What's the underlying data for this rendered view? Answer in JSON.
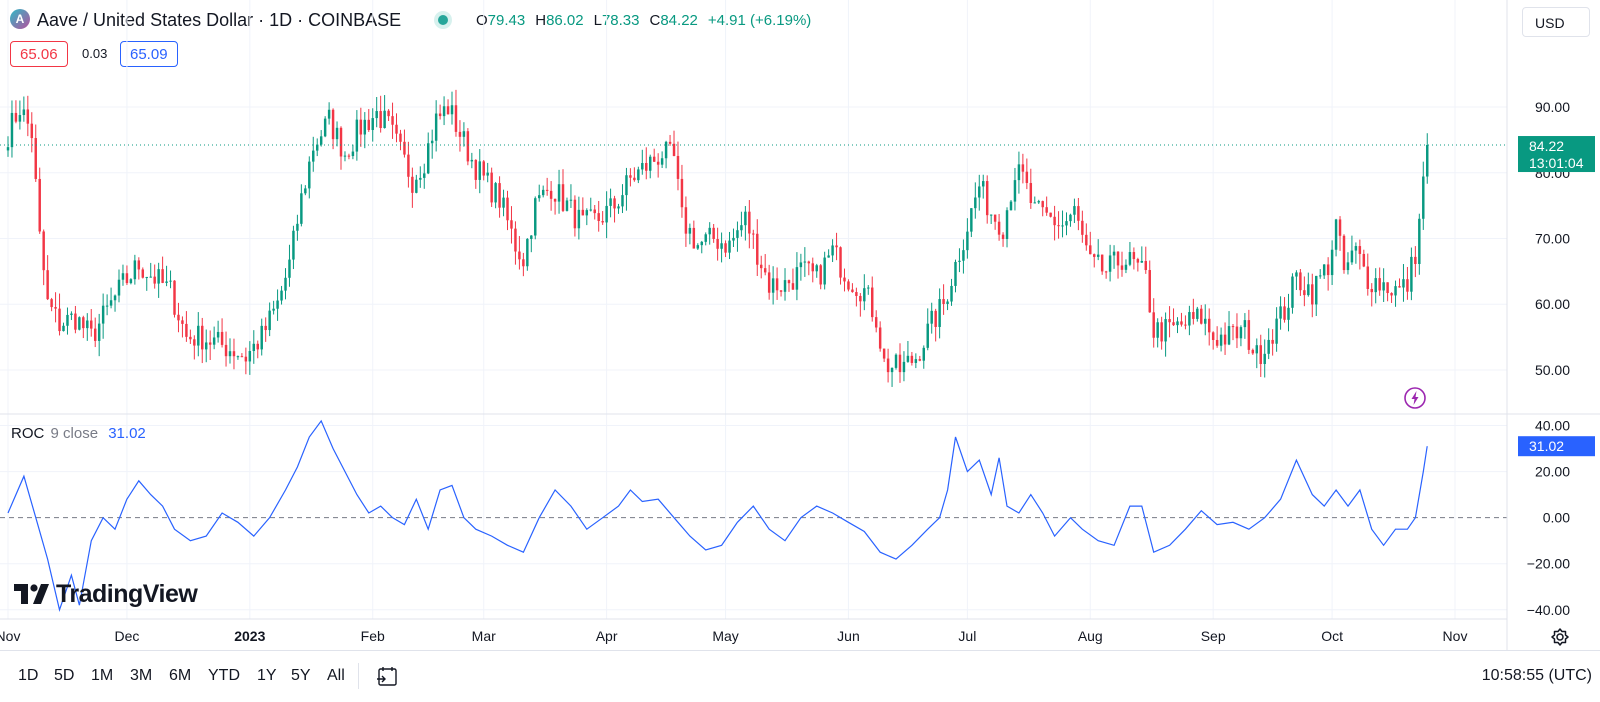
{
  "header": {
    "symbol_title": "Aave / United States Dollar · 1D · COINBASE",
    "logo_letter": "A",
    "ohlc": {
      "o_label": "O",
      "o_value": "79.43",
      "h_label": "H",
      "h_value": "86.02",
      "l_label": "L",
      "l_value": "78.33",
      "c_label": "C",
      "c_value": "84.22",
      "change": "+4.91 (+6.19%)"
    },
    "currency": "USD",
    "bid": "65.06",
    "spread": "0.03",
    "ask": "65.09"
  },
  "indicator": {
    "name": "ROC",
    "params": "9 close",
    "value": "31.02"
  },
  "watermark": "TradingView",
  "bottom_bar": {
    "ranges": [
      "1D",
      "5D",
      "1M",
      "3M",
      "6M",
      "YTD",
      "1Y",
      "5Y",
      "All"
    ],
    "clock": "10:58:55 (UTC)"
  },
  "colors": {
    "up": "#089981",
    "down": "#f23645",
    "roc_line": "#2962ff",
    "price_label_bg": "#089981",
    "roc_label_bg": "#2962ff"
  },
  "chart_data": [
    {
      "type": "candlestick",
      "title": "Aave / United States Dollar · 1D · COINBASE",
      "x_tick_labels": [
        "Nov",
        "Dec",
        "2023",
        "Feb",
        "Mar",
        "Apr",
        "May",
        "Jun",
        "Jul",
        "Aug",
        "Sep",
        "Oct",
        "Nov"
      ],
      "y_tick_labels": [
        "50.00",
        "60.00",
        "70.00",
        "80.00",
        "90.00"
      ],
      "ylim": [
        43.3,
        100.2
      ],
      "last_price": "84.22",
      "countdown": "13:01:04",
      "grid": true,
      "anchor_closes": [
        {
          "date": "2022-11-01",
          "close": 86
        },
        {
          "date": "2022-11-04",
          "close": 90
        },
        {
          "date": "2022-11-07",
          "close": 86
        },
        {
          "date": "2022-11-09",
          "close": 70
        },
        {
          "date": "2022-11-11",
          "close": 60
        },
        {
          "date": "2022-11-14",
          "close": 57
        },
        {
          "date": "2022-11-18",
          "close": 58
        },
        {
          "date": "2022-11-22",
          "close": 55
        },
        {
          "date": "2022-11-26",
          "close": 59
        },
        {
          "date": "2022-11-30",
          "close": 63
        },
        {
          "date": "2022-12-04",
          "close": 66
        },
        {
          "date": "2022-12-08",
          "close": 64
        },
        {
          "date": "2022-12-12",
          "close": 62
        },
        {
          "date": "2022-12-16",
          "close": 55
        },
        {
          "date": "2022-12-20",
          "close": 55
        },
        {
          "date": "2022-12-24",
          "close": 54
        },
        {
          "date": "2022-12-28",
          "close": 53
        },
        {
          "date": "2022-12-31",
          "close": 52
        },
        {
          "date": "2023-01-04",
          "close": 55
        },
        {
          "date": "2023-01-08",
          "close": 60
        },
        {
          "date": "2023-01-11",
          "close": 66
        },
        {
          "date": "2023-01-14",
          "close": 76
        },
        {
          "date": "2023-01-17",
          "close": 84
        },
        {
          "date": "2023-01-21",
          "close": 88
        },
        {
          "date": "2023-01-25",
          "close": 83
        },
        {
          "date": "2023-01-29",
          "close": 87
        },
        {
          "date": "2023-02-02",
          "close": 89
        },
        {
          "date": "2023-02-05",
          "close": 87
        },
        {
          "date": "2023-02-08",
          "close": 83
        },
        {
          "date": "2023-02-11",
          "close": 79
        },
        {
          "date": "2023-02-14",
          "close": 82
        },
        {
          "date": "2023-02-17",
          "close": 88
        },
        {
          "date": "2023-02-20",
          "close": 90
        },
        {
          "date": "2023-02-23",
          "close": 86
        },
        {
          "date": "2023-02-26",
          "close": 82
        },
        {
          "date": "2023-03-01",
          "close": 79
        },
        {
          "date": "2023-03-05",
          "close": 76
        },
        {
          "date": "2023-03-09",
          "close": 69
        },
        {
          "date": "2023-03-11",
          "close": 67
        },
        {
          "date": "2023-03-14",
          "close": 75
        },
        {
          "date": "2023-03-18",
          "close": 78
        },
        {
          "date": "2023-03-22",
          "close": 75
        },
        {
          "date": "2023-03-26",
          "close": 72
        },
        {
          "date": "2023-03-30",
          "close": 73
        },
        {
          "date": "2023-04-03",
          "close": 75
        },
        {
          "date": "2023-04-07",
          "close": 79
        },
        {
          "date": "2023-04-11",
          "close": 81
        },
        {
          "date": "2023-04-15",
          "close": 83
        },
        {
          "date": "2023-04-18",
          "close": 82
        },
        {
          "date": "2023-04-20",
          "close": 73
        },
        {
          "date": "2023-04-24",
          "close": 69
        },
        {
          "date": "2023-04-28",
          "close": 70
        },
        {
          "date": "2023-05-02",
          "close": 69
        },
        {
          "date": "2023-05-06",
          "close": 73
        },
        {
          "date": "2023-05-09",
          "close": 68
        },
        {
          "date": "2023-05-12",
          "close": 63
        },
        {
          "date": "2023-05-16",
          "close": 63
        },
        {
          "date": "2023-05-20",
          "close": 65
        },
        {
          "date": "2023-05-24",
          "close": 64
        },
        {
          "date": "2023-05-28",
          "close": 68
        },
        {
          "date": "2023-06-01",
          "close": 64
        },
        {
          "date": "2023-06-05",
          "close": 62
        },
        {
          "date": "2023-06-08",
          "close": 58
        },
        {
          "date": "2023-06-10",
          "close": 51
        },
        {
          "date": "2023-06-14",
          "close": 50
        },
        {
          "date": "2023-06-18",
          "close": 52
        },
        {
          "date": "2023-06-22",
          "close": 57
        },
        {
          "date": "2023-06-25",
          "close": 60
        },
        {
          "date": "2023-06-28",
          "close": 66
        },
        {
          "date": "2023-07-01",
          "close": 72
        },
        {
          "date": "2023-07-04",
          "close": 78
        },
        {
          "date": "2023-07-07",
          "close": 74
        },
        {
          "date": "2023-07-10",
          "close": 72
        },
        {
          "date": "2023-07-13",
          "close": 80
        },
        {
          "date": "2023-07-15",
          "close": 79
        },
        {
          "date": "2023-07-18",
          "close": 74
        },
        {
          "date": "2023-07-22",
          "close": 73
        },
        {
          "date": "2023-07-25",
          "close": 72
        },
        {
          "date": "2023-07-28",
          "close": 74
        },
        {
          "date": "2023-08-01",
          "close": 66
        },
        {
          "date": "2023-08-05",
          "close": 65
        },
        {
          "date": "2023-08-09",
          "close": 67
        },
        {
          "date": "2023-08-12",
          "close": 66
        },
        {
          "date": "2023-08-15",
          "close": 64
        },
        {
          "date": "2023-08-17",
          "close": 56
        },
        {
          "date": "2023-08-21",
          "close": 56
        },
        {
          "date": "2023-08-25",
          "close": 57
        },
        {
          "date": "2023-08-29",
          "close": 58
        },
        {
          "date": "2023-09-01",
          "close": 55
        },
        {
          "date": "2023-09-05",
          "close": 55
        },
        {
          "date": "2023-09-09",
          "close": 56
        },
        {
          "date": "2023-09-12",
          "close": 52
        },
        {
          "date": "2023-09-15",
          "close": 55
        },
        {
          "date": "2023-09-19",
          "close": 59
        },
        {
          "date": "2023-09-22",
          "close": 64
        },
        {
          "date": "2023-09-26",
          "close": 62
        },
        {
          "date": "2023-09-30",
          "close": 66
        },
        {
          "date": "2023-10-02",
          "close": 72
        },
        {
          "date": "2023-10-04",
          "close": 65
        },
        {
          "date": "2023-10-07",
          "close": 68
        },
        {
          "date": "2023-10-10",
          "close": 64
        },
        {
          "date": "2023-10-14",
          "close": 63
        },
        {
          "date": "2023-10-18",
          "close": 62
        },
        {
          "date": "2023-10-20",
          "close": 63
        },
        {
          "date": "2023-10-22",
          "close": 68
        },
        {
          "date": "2023-10-23",
          "close": 73
        },
        {
          "date": "2023-10-24",
          "close": 79.43
        },
        {
          "date": "2023-10-25",
          "close": 84.22
        }
      ]
    },
    {
      "type": "line",
      "name": "ROC",
      "x_tick_labels": [
        "Nov",
        "Dec",
        "2023",
        "Feb",
        "Mar",
        "Apr",
        "May",
        "Jun",
        "Jul",
        "Aug",
        "Sep",
        "Oct",
        "Nov"
      ],
      "y_tick_labels": [
        "−40.00",
        "−20.00",
        "0.00",
        "20.00",
        "40.00"
      ],
      "ylim": [
        -44,
        45
      ],
      "zero_line": true,
      "last_value": "31.02",
      "points": [
        {
          "date": "2022-11-01",
          "roc": 2
        },
        {
          "date": "2022-11-05",
          "roc": 18
        },
        {
          "date": "2022-11-08",
          "roc": 0
        },
        {
          "date": "2022-11-11",
          "roc": -18
        },
        {
          "date": "2022-11-14",
          "roc": -40
        },
        {
          "date": "2022-11-17",
          "roc": -25
        },
        {
          "date": "2022-11-19",
          "roc": -38
        },
        {
          "date": "2022-11-22",
          "roc": -10
        },
        {
          "date": "2022-11-25",
          "roc": 0
        },
        {
          "date": "2022-11-28",
          "roc": -5
        },
        {
          "date": "2022-12-01",
          "roc": 8
        },
        {
          "date": "2022-12-04",
          "roc": 16
        },
        {
          "date": "2022-12-07",
          "roc": 10
        },
        {
          "date": "2022-12-10",
          "roc": 5
        },
        {
          "date": "2022-12-13",
          "roc": -5
        },
        {
          "date": "2022-12-17",
          "roc": -10
        },
        {
          "date": "2022-12-21",
          "roc": -8
        },
        {
          "date": "2022-12-25",
          "roc": 2
        },
        {
          "date": "2022-12-29",
          "roc": -2
        },
        {
          "date": "2023-01-02",
          "roc": -8
        },
        {
          "date": "2023-01-06",
          "roc": 0
        },
        {
          "date": "2023-01-10",
          "roc": 12
        },
        {
          "date": "2023-01-13",
          "roc": 22
        },
        {
          "date": "2023-01-16",
          "roc": 35
        },
        {
          "date": "2023-01-19",
          "roc": 42
        },
        {
          "date": "2023-01-22",
          "roc": 30
        },
        {
          "date": "2023-01-25",
          "roc": 20
        },
        {
          "date": "2023-01-28",
          "roc": 10
        },
        {
          "date": "2023-01-31",
          "roc": 2
        },
        {
          "date": "2023-02-03",
          "roc": 5
        },
        {
          "date": "2023-02-06",
          "roc": 0
        },
        {
          "date": "2023-02-09",
          "roc": -3
        },
        {
          "date": "2023-02-12",
          "roc": 8
        },
        {
          "date": "2023-02-15",
          "roc": -5
        },
        {
          "date": "2023-02-18",
          "roc": 12
        },
        {
          "date": "2023-02-21",
          "roc": 14
        },
        {
          "date": "2023-02-24",
          "roc": 0
        },
        {
          "date": "2023-02-27",
          "roc": -5
        },
        {
          "date": "2023-03-03",
          "roc": -8
        },
        {
          "date": "2023-03-07",
          "roc": -12
        },
        {
          "date": "2023-03-11",
          "roc": -15
        },
        {
          "date": "2023-03-15",
          "roc": 0
        },
        {
          "date": "2023-03-19",
          "roc": 12
        },
        {
          "date": "2023-03-23",
          "roc": 5
        },
        {
          "date": "2023-03-27",
          "roc": -5
        },
        {
          "date": "2023-03-31",
          "roc": 0
        },
        {
          "date": "2023-04-04",
          "roc": 5
        },
        {
          "date": "2023-04-07",
          "roc": 12
        },
        {
          "date": "2023-04-10",
          "roc": 7
        },
        {
          "date": "2023-04-14",
          "roc": 8
        },
        {
          "date": "2023-04-18",
          "roc": 0
        },
        {
          "date": "2023-04-22",
          "roc": -8
        },
        {
          "date": "2023-04-26",
          "roc": -14
        },
        {
          "date": "2023-04-30",
          "roc": -12
        },
        {
          "date": "2023-05-04",
          "roc": -2
        },
        {
          "date": "2023-05-08",
          "roc": 5
        },
        {
          "date": "2023-05-12",
          "roc": -5
        },
        {
          "date": "2023-05-16",
          "roc": -10
        },
        {
          "date": "2023-05-20",
          "roc": 0
        },
        {
          "date": "2023-05-24",
          "roc": 5
        },
        {
          "date": "2023-05-28",
          "roc": 2
        },
        {
          "date": "2023-06-01",
          "roc": -2
        },
        {
          "date": "2023-06-05",
          "roc": -6
        },
        {
          "date": "2023-06-09",
          "roc": -15
        },
        {
          "date": "2023-06-13",
          "roc": -18
        },
        {
          "date": "2023-06-17",
          "roc": -12
        },
        {
          "date": "2023-06-21",
          "roc": -5
        },
        {
          "date": "2023-06-24",
          "roc": 0
        },
        {
          "date": "2023-06-26",
          "roc": 12
        },
        {
          "date": "2023-06-28",
          "roc": 35
        },
        {
          "date": "2023-07-01",
          "roc": 20
        },
        {
          "date": "2023-07-04",
          "roc": 25
        },
        {
          "date": "2023-07-07",
          "roc": 10
        },
        {
          "date": "2023-07-09",
          "roc": 26
        },
        {
          "date": "2023-07-11",
          "roc": 5
        },
        {
          "date": "2023-07-14",
          "roc": 2
        },
        {
          "date": "2023-07-17",
          "roc": 10
        },
        {
          "date": "2023-07-20",
          "roc": 2
        },
        {
          "date": "2023-07-23",
          "roc": -8
        },
        {
          "date": "2023-07-27",
          "roc": 0
        },
        {
          "date": "2023-07-30",
          "roc": -5
        },
        {
          "date": "2023-08-03",
          "roc": -10
        },
        {
          "date": "2023-08-07",
          "roc": -12
        },
        {
          "date": "2023-08-11",
          "roc": 5
        },
        {
          "date": "2023-08-14",
          "roc": 5
        },
        {
          "date": "2023-08-17",
          "roc": -15
        },
        {
          "date": "2023-08-21",
          "roc": -12
        },
        {
          "date": "2023-08-25",
          "roc": -5
        },
        {
          "date": "2023-08-29",
          "roc": 3
        },
        {
          "date": "2023-09-02",
          "roc": -3
        },
        {
          "date": "2023-09-06",
          "roc": -2
        },
        {
          "date": "2023-09-10",
          "roc": -5
        },
        {
          "date": "2023-09-14",
          "roc": 0
        },
        {
          "date": "2023-09-18",
          "roc": 8
        },
        {
          "date": "2023-09-22",
          "roc": 25
        },
        {
          "date": "2023-09-26",
          "roc": 10
        },
        {
          "date": "2023-09-29",
          "roc": 5
        },
        {
          "date": "2023-10-02",
          "roc": 12
        },
        {
          "date": "2023-10-05",
          "roc": 5
        },
        {
          "date": "2023-10-08",
          "roc": 12
        },
        {
          "date": "2023-10-11",
          "roc": -5
        },
        {
          "date": "2023-10-14",
          "roc": -12
        },
        {
          "date": "2023-10-17",
          "roc": -5
        },
        {
          "date": "2023-10-20",
          "roc": -5
        },
        {
          "date": "2023-10-22",
          "roc": 0
        },
        {
          "date": "2023-10-24",
          "roc": 20
        },
        {
          "date": "2023-10-25",
          "roc": 31.02
        }
      ]
    }
  ]
}
